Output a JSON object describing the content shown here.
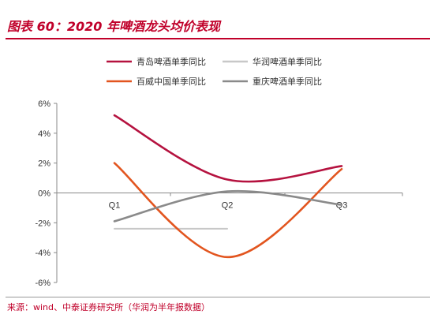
{
  "title": "图表 60：2020 年啤酒龙头均价表现",
  "source": "来源：wind、中泰证券研究所（华润为半年报数据）",
  "chart_data": {
    "type": "line",
    "categories": [
      "Q1",
      "Q2",
      "Q3"
    ],
    "ylim": [
      -6,
      6
    ],
    "yticks": [
      -6,
      -4,
      -2,
      0,
      2,
      4,
      6
    ],
    "ytick_labels": [
      "-6%",
      "-4%",
      "-2%",
      "0%",
      "2%",
      "4%",
      "6%"
    ],
    "smooth": true,
    "legend": "top",
    "series": [
      {
        "name": "青岛啤酒单季同比",
        "color": "#b5123f",
        "values": [
          5.2,
          0.9,
          1.8
        ]
      },
      {
        "name": "华润啤酒单季同比",
        "color": "#c8c8c8",
        "values": [
          -2.4,
          -2.4,
          null
        ]
      },
      {
        "name": "百威中国单季同比",
        "color": "#e2551f",
        "values": [
          2.0,
          -4.3,
          1.6
        ]
      },
      {
        "name": "重庆啤酒单季同比",
        "color": "#8a8a8a",
        "values": [
          -1.9,
          0.1,
          -0.8
        ]
      }
    ]
  }
}
